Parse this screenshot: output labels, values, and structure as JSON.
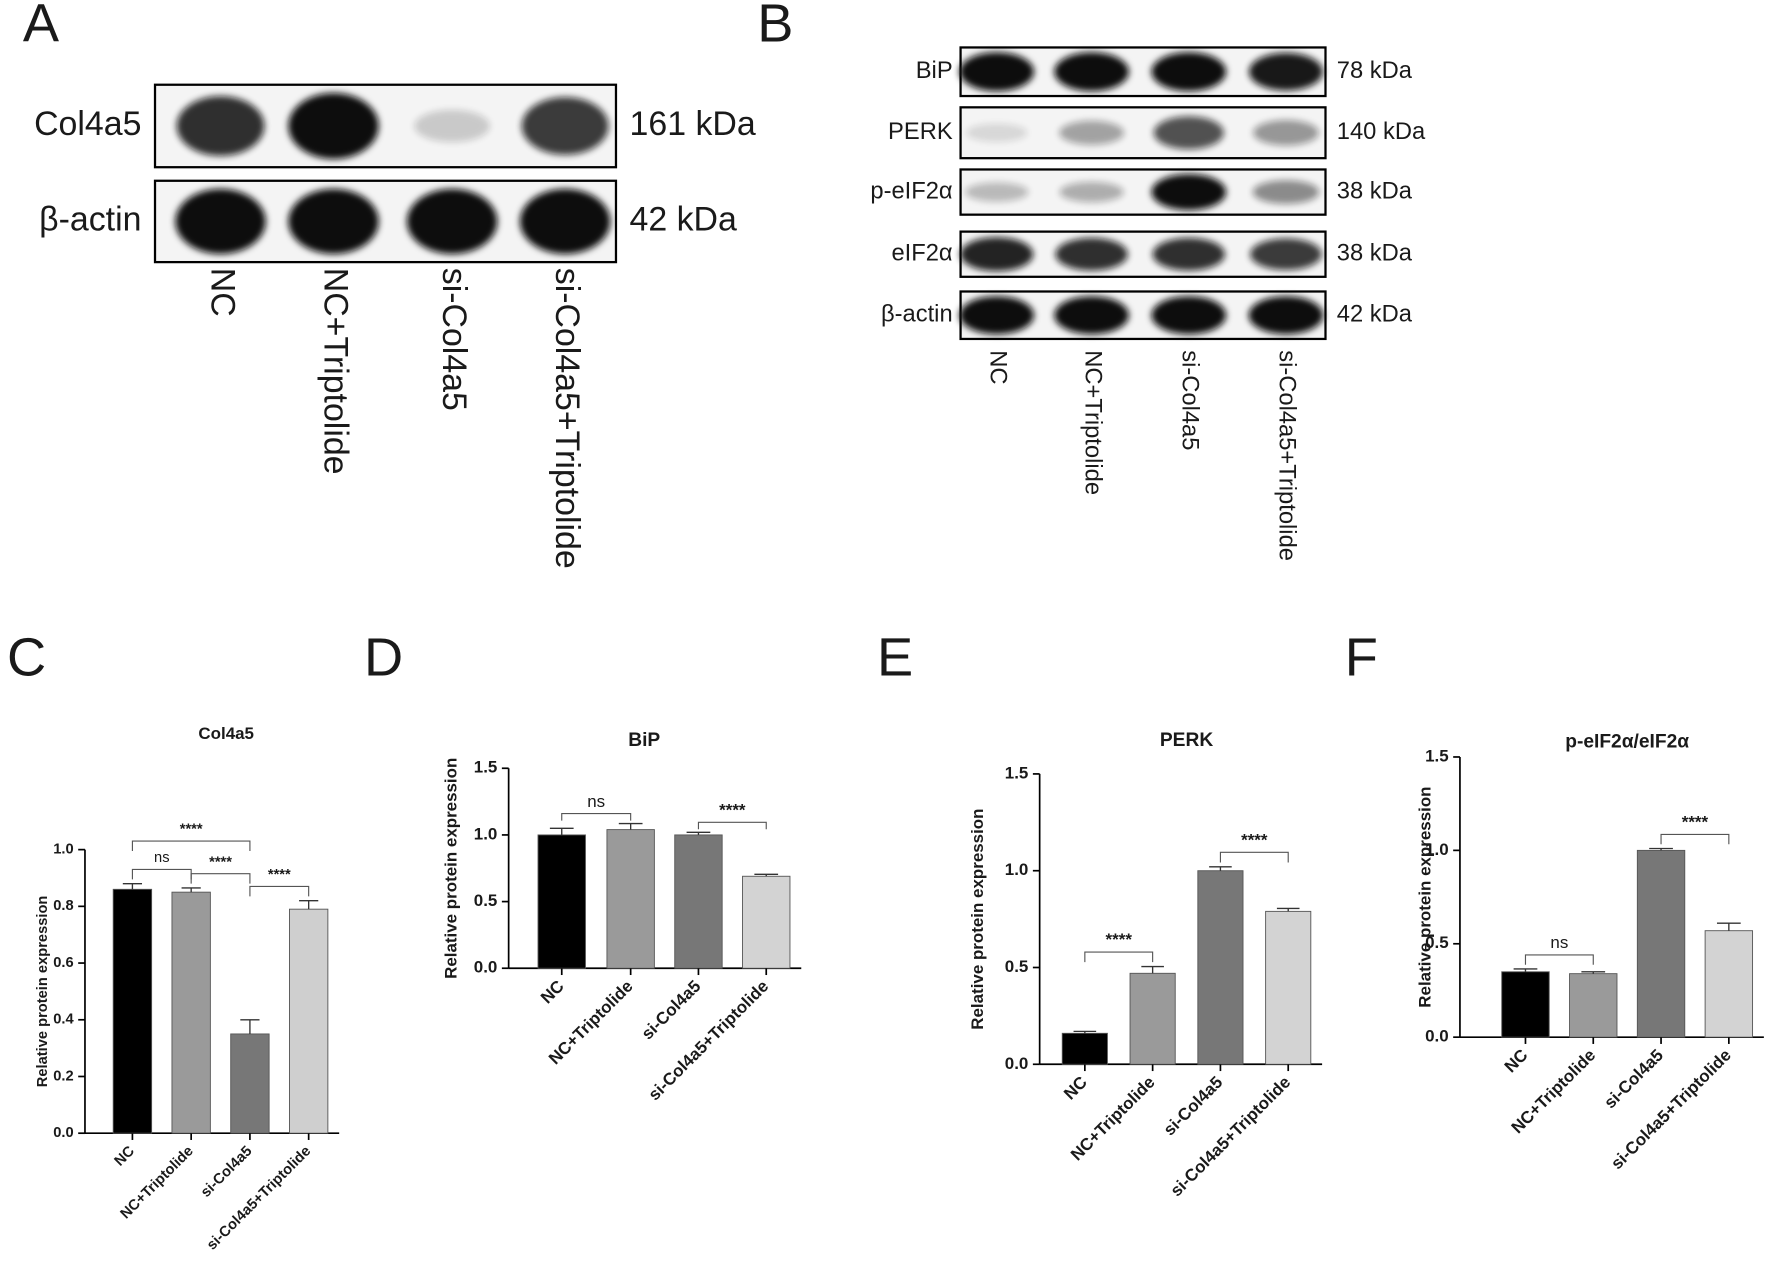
{
  "blot_a": {
    "label": "A",
    "rows": [
      {
        "name": "Col4a5",
        "size": "161 kDa"
      },
      {
        "name": "β-actin",
        "size": "42 kDa"
      }
    ],
    "lanes": [
      "NC",
      "NC+Triptolide",
      "si-Col4a5",
      "si-Col4a5+Triptolide"
    ]
  },
  "blot_b": {
    "label": "B",
    "rows": [
      {
        "name": "BiP",
        "size": "78 kDa"
      },
      {
        "name": "PERK",
        "size": "140 kDa"
      },
      {
        "name": "p-eIF2α",
        "size": "38 kDa"
      },
      {
        "name": "eIF2α",
        "size": "38 kDa"
      },
      {
        "name": "β-actin",
        "size": "42 kDa"
      }
    ],
    "lanes": [
      "NC",
      "NC+Triptolide",
      "si-Col4a5",
      "si-Col4a5+Triptolide"
    ]
  },
  "chart_data": [
    {
      "type": "bar",
      "panel": "C",
      "title": "Col4a5",
      "y_label": "Relative protein expression",
      "categories": [
        "NC",
        "NC+Triptolide",
        "si-Col4a5",
        "si-Col4a5+Triptolide"
      ],
      "values": [
        0.86,
        0.85,
        0.35,
        0.79
      ],
      "errors": [
        0.02,
        0.015,
        0.05,
        0.03
      ],
      "colors": [
        "#000000",
        "#9a9a9a",
        "#777777",
        "#cfcfcf"
      ],
      "ylim": [
        0,
        1.0
      ],
      "yticks": [
        {
          "value": 0,
          "label": "0.0"
        },
        0.2,
        0.4,
        0.6,
        0.8,
        {
          "value": 1.0,
          "label": "1.0"
        }
      ],
      "annotations": [
        {
          "between": [
            "NC",
            "NC+Triptolide"
          ],
          "label": "ns"
        },
        {
          "between": [
            "NC+Triptolide",
            "si-Col4a5"
          ],
          "label": "****"
        },
        {
          "between": [
            "si-Col4a5",
            "si-Col4a5+Triptolide"
          ],
          "label": "****"
        },
        {
          "between": [
            "NC",
            "si-Col4a5"
          ],
          "label": "****"
        }
      ]
    },
    {
      "type": "bar",
      "panel": "D",
      "title": "BiP",
      "y_label": "Relative protein expression",
      "categories": [
        "NC",
        "NC+Triptolide",
        "si-Col4a5",
        "si-Col4a5+Triptolide"
      ],
      "values": [
        1.0,
        1.04,
        1.0,
        0.69
      ],
      "errors": [
        0.05,
        0.045,
        0.02,
        0.015
      ],
      "colors": [
        "#000000",
        "#9a9a9a",
        "#777777",
        "#d3d3d3"
      ],
      "ylim": [
        0,
        1.5
      ],
      "yticks": [
        {
          "value": 0,
          "label": "0.0"
        },
        0.5,
        {
          "value": 1.0,
          "label": "1.0"
        },
        1.5
      ],
      "annotations": [
        {
          "between": [
            "NC",
            "NC+Triptolide"
          ],
          "label": "ns"
        },
        {
          "between": [
            "si-Col4a5",
            "si-Col4a5+Triptolide"
          ],
          "label": "****"
        }
      ]
    },
    {
      "type": "bar",
      "panel": "E",
      "title": "PERK",
      "y_label": "Relative protein expression",
      "categories": [
        "NC",
        "NC+Triptolide",
        "si-Col4a5",
        "si-Col4a5+Triptolide"
      ],
      "values": [
        0.16,
        0.47,
        1.0,
        0.79
      ],
      "errors": [
        0.01,
        0.035,
        0.02,
        0.015
      ],
      "colors": [
        "#000000",
        "#9a9a9a",
        "#777777",
        "#d3d3d3"
      ],
      "ylim": [
        0,
        1.5
      ],
      "yticks": [
        {
          "value": 0,
          "label": "0.0"
        },
        0.5,
        {
          "value": 1.0,
          "label": "1.0"
        },
        1.5
      ],
      "annotations": [
        {
          "between": [
            "NC",
            "NC+Triptolide"
          ],
          "label": "****"
        },
        {
          "between": [
            "si-Col4a5",
            "si-Col4a5+Triptolide"
          ],
          "label": "****"
        }
      ]
    },
    {
      "type": "bar",
      "panel": "F",
      "title": "p-eIF2α/eIF2α",
      "y_label": "Relative protein expression",
      "categories": [
        "NC",
        "NC+Triptolide",
        "si-Col4a5",
        "si-Col4a5+Triptolide"
      ],
      "values": [
        0.35,
        0.34,
        1.0,
        0.57
      ],
      "errors": [
        0.015,
        0.01,
        0.01,
        0.04
      ],
      "colors": [
        "#000000",
        "#9a9a9a",
        "#777777",
        "#d3d3d3"
      ],
      "ylim": [
        0,
        1.5
      ],
      "yticks": [
        {
          "value": 0,
          "label": "0.0"
        },
        0.5,
        {
          "value": 1.0,
          "label": "1.0"
        },
        1.5
      ],
      "annotations": [
        {
          "between": [
            "NC",
            "NC+Triptolide"
          ],
          "label": "ns"
        },
        {
          "between": [
            "si-Col4a5",
            "si-Col4a5+Triptolide"
          ],
          "label": "****"
        }
      ]
    }
  ]
}
